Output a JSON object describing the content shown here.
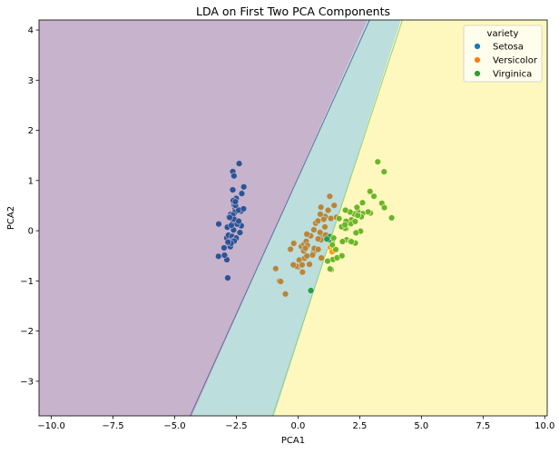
{
  "chart_data": {
    "type": "scatter",
    "title": "LDA on First Two PCA Components",
    "xlabel": "PCA1",
    "ylabel": "PCA2",
    "xlim": [
      -10.5,
      10.1
    ],
    "ylim": [
      -3.69,
      4.2
    ],
    "xticks": [
      -10.0,
      -7.5,
      -5.0,
      -2.5,
      0.0,
      2.5,
      5.0,
      7.5,
      10.0
    ],
    "xtick_labels": [
      "−10.0",
      "−7.5",
      "−5.0",
      "−2.5",
      "0.0",
      "2.5",
      "5.0",
      "7.5",
      "10.0"
    ],
    "yticks": [
      -3,
      -2,
      -1,
      0,
      1,
      2,
      3,
      4
    ],
    "ytick_labels": [
      "−3",
      "−2",
      "−1",
      "0",
      "1",
      "2",
      "3",
      "4"
    ],
    "grid": false,
    "legend": {
      "title": "variety",
      "placement": "top-right"
    },
    "decision_regions": {
      "colors": [
        "#440154",
        "#21918c",
        "#fde725"
      ],
      "overlay_alpha": 0.3,
      "boundaries": [
        {
          "between": [
            "Setosa",
            "Versicolor"
          ],
          "points": [
            [
              2.9,
              4.2
            ],
            [
              -4.37,
              -3.69
            ]
          ]
        },
        {
          "between": [
            "Versicolor",
            "Virginica"
          ],
          "points": [
            [
              4.23,
              4.2
            ],
            [
              -1.03,
              -3.69
            ]
          ]
        }
      ]
    },
    "series": [
      {
        "name": "Setosa",
        "color": "#1f77b4",
        "points": [
          [
            -2.684,
            0.319
          ],
          [
            -2.714,
            -0.177
          ],
          [
            -2.889,
            -0.145
          ],
          [
            -2.745,
            -0.318
          ],
          [
            -2.729,
            0.327
          ],
          [
            -2.281,
            0.741
          ],
          [
            -2.821,
            -0.089
          ],
          [
            -2.626,
            0.163
          ],
          [
            -2.886,
            -0.578
          ],
          [
            -2.673,
            -0.114
          ],
          [
            -2.507,
            0.645
          ],
          [
            -2.613,
            0.015
          ],
          [
            -2.787,
            -0.235
          ],
          [
            -3.225,
            -0.511
          ],
          [
            -2.644,
            1.179
          ],
          [
            -2.386,
            1.338
          ],
          [
            -2.623,
            0.811
          ],
          [
            -2.648,
            0.312
          ],
          [
            -2.199,
            0.873
          ],
          [
            -2.588,
            0.514
          ],
          [
            -2.31,
            0.391
          ],
          [
            -2.544,
            0.433
          ],
          [
            -3.216,
            0.133
          ],
          [
            -2.303,
            0.099
          ],
          [
            -2.356,
            -0.037
          ],
          [
            -2.508,
            -0.146
          ],
          [
            -2.469,
            0.131
          ],
          [
            -2.562,
            0.368
          ],
          [
            -2.64,
            0.312
          ],
          [
            -2.633,
            -0.196
          ],
          [
            -2.587,
            -0.205
          ],
          [
            -2.41,
            0.411
          ],
          [
            -2.648,
            0.814
          ],
          [
            -2.597,
            1.093
          ],
          [
            -2.867,
            0.069
          ],
          [
            -2.625,
            0.599
          ],
          [
            -2.8,
            0.268
          ],
          [
            -2.98,
            -0.488
          ],
          [
            -2.59,
            0.229
          ],
          [
            -2.77,
            0.264
          ],
          [
            -2.85,
            -0.941
          ],
          [
            -2.998,
            -0.342
          ],
          [
            -2.406,
            0.189
          ],
          [
            -2.209,
            0.437
          ],
          [
            -2.715,
            -0.25
          ],
          [
            -2.538,
            0.504
          ],
          [
            -2.84,
            -0.228
          ],
          [
            -2.542,
            0.579
          ],
          [
            -2.704,
            0.107
          ]
        ]
      },
      {
        "name": "Versicolor",
        "color": "#ff7f0e",
        "points": [
          [
            1.285,
            0.685
          ],
          [
            0.932,
            0.318
          ],
          [
            1.464,
            0.504
          ],
          [
            0.181,
            -0.825
          ],
          [
            1.087,
            0.075
          ],
          [
            0.64,
            -0.418
          ],
          [
            1.095,
            0.284
          ],
          [
            -0.751,
            -1.004
          ],
          [
            1.043,
            0.228
          ],
          [
            -0.01,
            -0.723
          ],
          [
            -0.511,
            -1.262
          ],
          [
            0.511,
            -0.102
          ],
          [
            0.262,
            -0.548
          ],
          [
            0.984,
            -0.124
          ],
          [
            -0.174,
            -0.252
          ],
          [
            0.928,
            0.468
          ],
          [
            0.66,
            -0.353
          ],
          [
            0.236,
            -0.333
          ],
          [
            0.944,
            -0.543
          ],
          [
            0.045,
            -0.584
          ],
          [
            1.116,
            -0.084
          ],
          [
            0.357,
            -0.069
          ],
          [
            1.298,
            -0.328
          ],
          [
            0.921,
            -0.183
          ],
          [
            0.715,
            0.149
          ],
          [
            0.9,
            0.329
          ],
          [
            1.332,
            0.244
          ],
          [
            1.558,
            0.267
          ],
          [
            0.813,
            -0.163
          ],
          [
            -0.306,
            -0.368
          ],
          [
            -0.068,
            -0.705
          ],
          [
            -0.19,
            -0.68
          ],
          [
            0.136,
            -0.314
          ],
          [
            1.38,
            -0.421
          ],
          [
            0.588,
            -0.484
          ],
          [
            0.807,
            0.194
          ],
          [
            1.22,
            0.408
          ],
          [
            0.815,
            -0.372
          ],
          [
            0.246,
            -0.268
          ],
          [
            0.165,
            -0.681
          ],
          [
            0.464,
            -0.67
          ],
          [
            0.891,
            -0.034
          ],
          [
            0.23,
            -0.402
          ],
          [
            -0.705,
            -1.012
          ],
          [
            0.357,
            -0.504
          ],
          [
            0.332,
            -0.212
          ],
          [
            0.376,
            -0.292
          ],
          [
            0.642,
            0.018
          ],
          [
            -0.906,
            -0.756
          ],
          [
            0.3,
            -0.349
          ]
        ]
      },
      {
        "name": "Virginica",
        "color": "#2ca02c",
        "points": [
          [
            2.532,
            -0.01
          ],
          [
            1.414,
            -0.575
          ],
          [
            2.616,
            0.341
          ],
          [
            1.971,
            -0.181
          ],
          [
            2.35,
            -0.042
          ],
          [
            3.397,
            0.547
          ],
          [
            0.521,
            -1.193
          ],
          [
            2.933,
            0.352
          ],
          [
            2.321,
            -0.246
          ],
          [
            2.917,
            0.783
          ],
          [
            1.662,
            0.242
          ],
          [
            1.803,
            -0.216
          ],
          [
            2.165,
            0.216
          ],
          [
            1.345,
            -0.776
          ],
          [
            1.585,
            -0.539
          ],
          [
            1.905,
            0.119
          ],
          [
            1.95,
            0.041
          ],
          [
            3.488,
            1.175
          ],
          [
            3.795,
            0.257
          ],
          [
            1.3,
            -0.761
          ],
          [
            2.428,
            0.378
          ],
          [
            1.199,
            -0.606
          ],
          [
            3.5,
            0.46
          ],
          [
            1.388,
            -0.204
          ],
          [
            2.276,
            0.333
          ],
          [
            2.614,
            0.558
          ],
          [
            1.258,
            -0.18
          ],
          [
            1.291,
            -0.117
          ],
          [
            2.124,
            -0.21
          ],
          [
            2.388,
            0.465
          ],
          [
            2.841,
            0.375
          ],
          [
            3.231,
            1.374
          ],
          [
            2.159,
            -0.218
          ],
          [
            1.444,
            -0.144
          ],
          [
            1.78,
            -0.5
          ],
          [
            3.077,
            0.686
          ],
          [
            2.144,
            0.14
          ],
          [
            1.905,
            0.049
          ],
          [
            1.169,
            -0.165
          ],
          [
            2.108,
            0.372
          ],
          [
            2.314,
            0.183
          ],
          [
            1.922,
            0.409
          ],
          [
            2.563,
            0.278
          ],
          [
            2.419,
            0.305
          ],
          [
            1.944,
            0.188
          ],
          [
            1.527,
            -0.375
          ],
          [
            1.764,
            0.079
          ],
          [
            1.901,
            0.117
          ],
          [
            1.39,
            -0.283
          ]
        ]
      }
    ]
  }
}
